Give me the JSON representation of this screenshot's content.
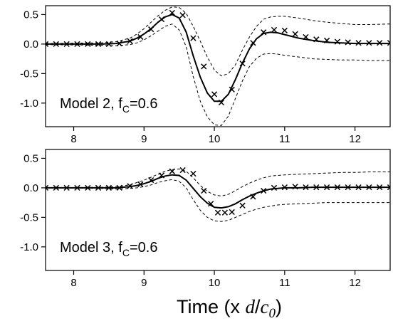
{
  "chart_data": {
    "xlabel": "Time (x d/c0)",
    "xlabel_parts": {
      "prefix": "Time (x ",
      "d": "d",
      "slash": "/",
      "c": "c",
      "sub": "0",
      "suffix": ")"
    },
    "panels": [
      {
        "type": "line",
        "annotation": "Model 2, f",
        "annotation_sub": "C",
        "annotation_suffix": "=0.6",
        "xlim": [
          7.6,
          12.5
        ],
        "ylim": [
          -1.4,
          0.65
        ],
        "xticks": [
          8,
          9,
          10,
          11,
          12
        ],
        "xtick_labels": [
          "8",
          "9",
          "10",
          "11",
          "12"
        ],
        "yticks": [
          0.5,
          0.0,
          -0.5,
          -1.0
        ],
        "ytick_labels": [
          "0.5",
          "0.0",
          "-0.5",
          "-1.0"
        ],
        "series": [
          {
            "style": "solid",
            "x": [
              7.6,
              8.4,
              8.6,
              8.8,
              8.9,
              9.0,
              9.1,
              9.2,
              9.3,
              9.4,
              9.5,
              9.6,
              9.7,
              9.8,
              9.9,
              10.0,
              10.1,
              10.2,
              10.3,
              10.4,
              10.5,
              10.6,
              10.7,
              10.8,
              10.9,
              11.0,
              11.2,
              11.4,
              11.6,
              11.8,
              12.0,
              12.2,
              12.5
            ],
            "y": [
              0.0,
              0.0,
              0.01,
              0.05,
              0.1,
              0.17,
              0.26,
              0.37,
              0.46,
              0.5,
              0.44,
              0.2,
              -0.2,
              -0.56,
              -0.83,
              -0.97,
              -0.97,
              -0.85,
              -0.6,
              -0.32,
              -0.08,
              0.09,
              0.18,
              0.2,
              0.19,
              0.16,
              0.1,
              0.06,
              0.03,
              0.02,
              0.01,
              0.01,
              0.01
            ]
          },
          {
            "style": "dashed",
            "x": [
              7.6,
              8.4,
              8.6,
              8.8,
              8.9,
              9.0,
              9.1,
              9.2,
              9.3,
              9.4,
              9.5,
              9.6,
              9.7,
              9.8,
              9.9,
              10.0,
              10.1,
              10.2,
              10.3,
              10.4,
              10.5,
              10.6,
              10.7,
              10.8,
              10.9,
              11.0,
              11.2,
              11.4,
              11.6,
              11.8,
              12.0,
              12.2,
              12.5
            ],
            "y": [
              0.01,
              0.02,
              0.04,
              0.1,
              0.17,
              0.26,
              0.37,
              0.48,
              0.57,
              0.63,
              0.62,
              0.52,
              0.3,
              0.05,
              -0.22,
              -0.44,
              -0.54,
              -0.5,
              -0.35,
              -0.1,
              0.12,
              0.3,
              0.42,
              0.46,
              0.47,
              0.47,
              0.44,
              0.4,
              0.37,
              0.35,
              0.33,
              0.33,
              0.34
            ]
          },
          {
            "style": "dashed",
            "x": [
              7.6,
              8.4,
              8.6,
              8.8,
              8.9,
              9.0,
              9.1,
              9.2,
              9.3,
              9.4,
              9.5,
              9.6,
              9.7,
              9.8,
              9.9,
              10.0,
              10.1,
              10.2,
              10.3,
              10.4,
              10.5,
              10.6,
              10.7,
              10.8,
              10.9,
              11.0,
              11.2,
              11.4,
              11.6,
              11.8,
              12.0,
              12.2,
              12.5
            ],
            "y": [
              -0.01,
              -0.02,
              -0.03,
              -0.01,
              0.02,
              0.07,
              0.14,
              0.22,
              0.3,
              0.34,
              0.24,
              -0.05,
              -0.55,
              -0.97,
              -1.23,
              -1.37,
              -1.38,
              -1.22,
              -0.92,
              -0.62,
              -0.38,
              -0.24,
              -0.17,
              -0.16,
              -0.17,
              -0.19,
              -0.22,
              -0.25,
              -0.26,
              -0.27,
              -0.27,
              -0.28,
              -0.28
            ]
          },
          {
            "style": "markers",
            "x": [
              7.6,
              7.75,
              7.9,
              8.05,
              8.2,
              8.35,
              8.5,
              8.65,
              8.8,
              8.95,
              9.1,
              9.25,
              9.4,
              9.55,
              9.7,
              9.85,
              10.0,
              10.1,
              10.25,
              10.4,
              10.55,
              10.7,
              10.85,
              11.0,
              11.15,
              11.3,
              11.45,
              11.6,
              11.75,
              11.9,
              12.05,
              12.2,
              12.35,
              12.5
            ],
            "y": [
              0.0,
              0.0,
              0.0,
              0.0,
              0.0,
              0.0,
              0.0,
              0.01,
              0.05,
              0.12,
              0.25,
              0.42,
              0.53,
              0.49,
              0.1,
              -0.38,
              -0.85,
              -0.99,
              -0.77,
              -0.33,
              0.02,
              0.2,
              0.24,
              0.23,
              0.17,
              0.12,
              0.08,
              0.06,
              0.04,
              0.03,
              0.02,
              0.02,
              0.02,
              0.02
            ]
          }
        ]
      },
      {
        "type": "line",
        "annotation": "Model 3, f",
        "annotation_sub": "C",
        "annotation_suffix": "=0.6",
        "xlim": [
          7.6,
          12.5
        ],
        "ylim": [
          -1.4,
          0.65
        ],
        "xticks": [
          8,
          9,
          10,
          11,
          12
        ],
        "xtick_labels": [
          "8",
          "9",
          "10",
          "11",
          "12"
        ],
        "yticks": [
          0.5,
          0.0,
          -0.5,
          -1.0
        ],
        "ytick_labels": [
          "0.5",
          "0.0",
          "-0.5",
          "-1.0"
        ],
        "series": [
          {
            "style": "solid",
            "x": [
              7.6,
              8.4,
              8.6,
              8.8,
              8.9,
              9.0,
              9.1,
              9.2,
              9.3,
              9.4,
              9.5,
              9.6,
              9.7,
              9.8,
              9.9,
              10.0,
              10.1,
              10.2,
              10.3,
              10.4,
              10.5,
              10.6,
              10.7,
              10.8,
              10.9,
              11.0,
              11.2,
              11.4,
              11.6,
              11.8,
              12.0,
              12.2,
              12.5
            ],
            "y": [
              0.0,
              0.0,
              0.0,
              0.02,
              0.04,
              0.07,
              0.11,
              0.16,
              0.2,
              0.22,
              0.21,
              0.13,
              -0.01,
              -0.15,
              -0.26,
              -0.33,
              -0.34,
              -0.32,
              -0.27,
              -0.2,
              -0.14,
              -0.09,
              -0.05,
              -0.02,
              -0.01,
              0.0,
              0.0,
              0.01,
              0.01,
              0.01,
              0.01,
              0.01,
              0.01
            ]
          },
          {
            "style": "dashed",
            "x": [
              7.6,
              8.4,
              8.6,
              8.8,
              8.9,
              9.0,
              9.1,
              9.2,
              9.3,
              9.4,
              9.5,
              9.6,
              9.7,
              9.8,
              9.9,
              10.0,
              10.1,
              10.2,
              10.3,
              10.4,
              10.5,
              10.6,
              10.7,
              10.8,
              10.9,
              11.0,
              11.2,
              11.4,
              11.6,
              11.8,
              12.0,
              12.2,
              12.5
            ],
            "y": [
              0.0,
              0.01,
              0.02,
              0.05,
              0.09,
              0.13,
              0.18,
              0.23,
              0.28,
              0.31,
              0.32,
              0.28,
              0.17,
              0.04,
              -0.06,
              -0.12,
              -0.14,
              -0.11,
              -0.05,
              0.02,
              0.08,
              0.13,
              0.17,
              0.2,
              0.21,
              0.22,
              0.23,
              0.24,
              0.25,
              0.26,
              0.26,
              0.27,
              0.27
            ]
          },
          {
            "style": "dashed",
            "x": [
              7.6,
              8.4,
              8.6,
              8.8,
              8.9,
              9.0,
              9.1,
              9.2,
              9.3,
              9.4,
              9.5,
              9.6,
              9.7,
              9.8,
              9.9,
              10.0,
              10.1,
              10.2,
              10.3,
              10.4,
              10.5,
              10.6,
              10.7,
              10.8,
              10.9,
              11.0,
              11.2,
              11.4,
              11.6,
              11.8,
              12.0,
              12.2,
              12.5
            ],
            "y": [
              0.0,
              -0.01,
              -0.02,
              -0.01,
              0.0,
              0.02,
              0.05,
              0.09,
              0.12,
              0.14,
              0.11,
              0.0,
              -0.2,
              -0.38,
              -0.5,
              -0.56,
              -0.57,
              -0.55,
              -0.5,
              -0.45,
              -0.4,
              -0.36,
              -0.33,
              -0.31,
              -0.29,
              -0.28,
              -0.27,
              -0.26,
              -0.25,
              -0.25,
              -0.25,
              -0.25,
              -0.25
            ]
          },
          {
            "style": "markers",
            "x": [
              7.6,
              7.75,
              7.9,
              8.05,
              8.2,
              8.35,
              8.5,
              8.65,
              8.8,
              8.95,
              9.1,
              9.25,
              9.4,
              9.55,
              9.7,
              9.85,
              9.95,
              10.05,
              10.15,
              10.25,
              10.4,
              10.55,
              10.7,
              10.85,
              11.0,
              11.15,
              11.3,
              11.45,
              11.6,
              11.75,
              11.9,
              12.05,
              12.2,
              12.35,
              12.5
            ],
            "y": [
              0.0,
              0.0,
              0.0,
              0.0,
              0.0,
              0.0,
              0.0,
              0.0,
              0.03,
              0.06,
              0.13,
              0.21,
              0.28,
              0.3,
              0.24,
              -0.05,
              -0.27,
              -0.42,
              -0.42,
              -0.41,
              -0.3,
              -0.15,
              -0.05,
              0.0,
              0.01,
              0.02,
              0.01,
              0.01,
              0.01,
              0.01,
              0.01,
              0.01,
              0.01,
              0.01,
              0.01
            ]
          }
        ]
      }
    ]
  }
}
